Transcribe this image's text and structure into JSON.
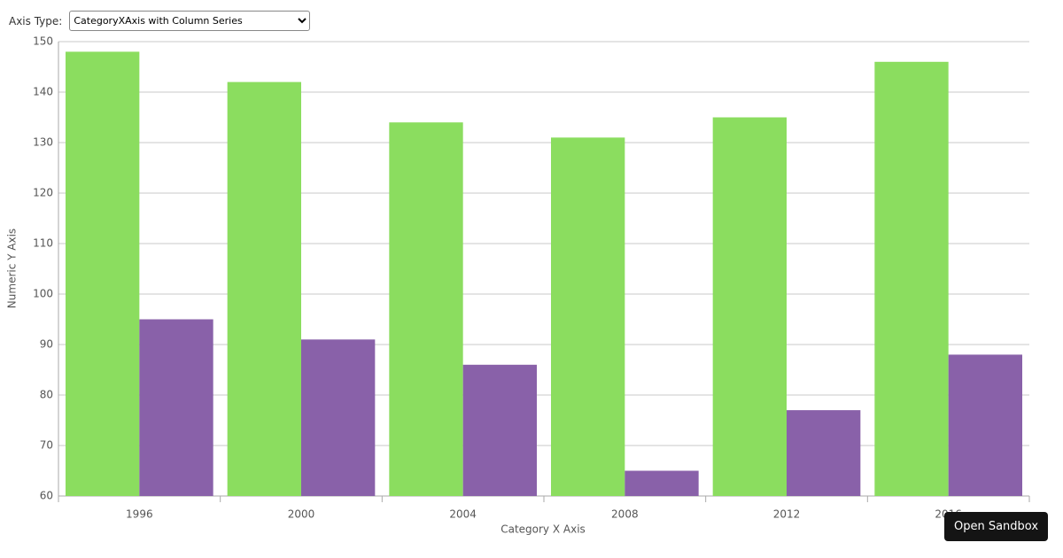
{
  "axis_type_label": "Axis Type:",
  "axis_type_option": "CategoryXAxis with Column Series",
  "sandbox_button": "Open Sandbox",
  "chart_data": {
    "type": "bar",
    "x_label": "Category X Axis",
    "y_label": "Numeric Y Axis",
    "categories": [
      "1996",
      "2000",
      "2004",
      "2008",
      "2012",
      "2016"
    ],
    "series": [
      {
        "color": "#8bdd5f",
        "values": [
          148,
          142,
          134,
          131,
          135,
          146
        ]
      },
      {
        "color": "#8961a9",
        "values": [
          95,
          91,
          86,
          65,
          77,
          88
        ]
      }
    ],
    "ylim": [
      60,
      150
    ],
    "yticks": [
      60,
      70,
      80,
      90,
      100,
      110,
      120,
      130,
      140,
      150
    ],
    "grid": true
  }
}
